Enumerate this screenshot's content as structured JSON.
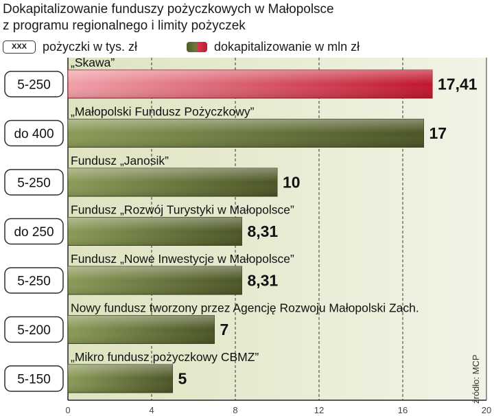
{
  "title_line1": "Dokapitalizowanie funduszy pożyczkowych w Małopolsce",
  "title_line2": "z programu regionalnego i limity pożyczek",
  "legend": {
    "box_text": "XXX",
    "loans_label": "pożyczki w tys. zł",
    "capital_label": "dokapitalizowanie w mln zł"
  },
  "source": "źródło: MCP",
  "colors": {
    "panel_background": "#e5e8cc",
    "olive_dark": "#4a5424",
    "olive_light": "#8b9a58",
    "red_dark": "#c0152d",
    "red_light": "#f0a0a8"
  },
  "chart_data": {
    "type": "bar",
    "orientation": "horizontal",
    "categories": [
      "„Skawa”",
      "„Małopolski Fundusz Pożyczkowy”",
      "Fundusz „Janosik”",
      "Fundusz „Rozwój Turystyki w Małopolsce”",
      "Fundusz „Nowe Inwestycje w Małopolsce”",
      "Nowy fundusz tworzony przez Agencję Rozwoju Małopolski Zach.",
      "„Mikro fundusz pożyczkowy CBMZ”"
    ],
    "values": [
      17.41,
      17,
      10,
      8.31,
      8.31,
      7,
      5
    ],
    "value_labels": [
      "17,41",
      "17",
      "10",
      "8,31",
      "8,31",
      "7",
      "5"
    ],
    "loan_limits": [
      "5-250",
      "do 400",
      "5-250",
      "do 250",
      "5-250",
      "5-200",
      "5-150"
    ],
    "highlight_index": 0,
    "xlim": [
      0,
      20
    ],
    "xticks": [
      0,
      4,
      8,
      12,
      16,
      20
    ],
    "grid": true
  }
}
